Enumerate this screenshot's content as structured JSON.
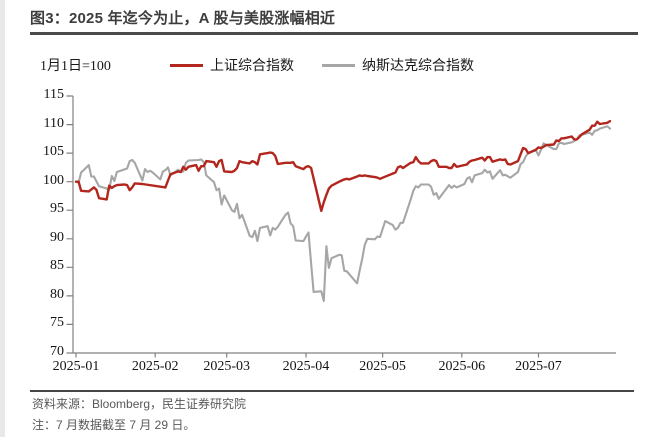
{
  "page": {
    "title": "图3：2025 年迄今为止，A 股与美股涨幅相近",
    "footer": {
      "source": "资料来源：Bloomberg，民生证券研究院",
      "note": "注：7 月数据截至 7 月 29 日。"
    }
  },
  "chart_data": {
    "type": "line",
    "baseline_label": "1月1日=100",
    "ylabel": "",
    "xlabel": "",
    "ylim": [
      70,
      115
    ],
    "y_ticks": [
      70,
      75,
      80,
      85,
      90,
      95,
      100,
      105,
      110,
      115
    ],
    "x_tick_labels": [
      "2025-01",
      "2025-02",
      "2025-03",
      "2025-04",
      "2025-05",
      "2025-06",
      "2025-07"
    ],
    "x_tick_days": [
      1,
      32,
      60,
      91,
      121,
      152,
      182
    ],
    "x_range_days": [
      1,
      213
    ],
    "grid": false,
    "legend_position": "top",
    "axis_color": "#808080",
    "series": [
      {
        "name": "上证综合指数",
        "color": "#b2261d",
        "points": [
          [
            1,
            100
          ],
          [
            2,
            100
          ],
          [
            3,
            98.4
          ],
          [
            6,
            98.3
          ],
          [
            8,
            99
          ],
          [
            9,
            98.6
          ],
          [
            10,
            97.1
          ],
          [
            13,
            96.9
          ],
          [
            14,
            99.3
          ],
          [
            15,
            98.9
          ],
          [
            16,
            99.2
          ],
          [
            17,
            99.4
          ],
          [
            20,
            99.5
          ],
          [
            21,
            99.4
          ],
          [
            22,
            98.5
          ],
          [
            23,
            99
          ],
          [
            24,
            99.7
          ],
          [
            27,
            99.6
          ],
          [
            36,
            99
          ],
          [
            37,
            100.2
          ],
          [
            38,
            101.3
          ],
          [
            41,
            101.8
          ],
          [
            42,
            101.7
          ],
          [
            43,
            102.6
          ],
          [
            44,
            102.1
          ],
          [
            45,
            102.6
          ],
          [
            48,
            102.9
          ],
          [
            49,
            101.9
          ],
          [
            50,
            102.7
          ],
          [
            51,
            102.7
          ],
          [
            52,
            103.6
          ],
          [
            55,
            103.4
          ],
          [
            56,
            102.6
          ],
          [
            57,
            103.6
          ],
          [
            58,
            103.8
          ],
          [
            59,
            101.8
          ],
          [
            62,
            101.7
          ],
          [
            63,
            101.9
          ],
          [
            64,
            102.4
          ],
          [
            65,
            103.6
          ],
          [
            66,
            103.4
          ],
          [
            69,
            103.2
          ],
          [
            70,
            103.6
          ],
          [
            71,
            103.4
          ],
          [
            72,
            103
          ],
          [
            73,
            104.8
          ],
          [
            76,
            105
          ],
          [
            77,
            105.1
          ],
          [
            78,
            105
          ],
          [
            79,
            104.5
          ],
          [
            80,
            103.1
          ],
          [
            83,
            103.3
          ],
          [
            84,
            103.3
          ],
          [
            85,
            103.3
          ],
          [
            86,
            103.4
          ],
          [
            87,
            102.7
          ],
          [
            90,
            102.2
          ],
          [
            91,
            102.6
          ],
          [
            92,
            102.7
          ],
          [
            93,
            102.4
          ],
          [
            97,
            94.9
          ],
          [
            98,
            96.4
          ],
          [
            99,
            97.7
          ],
          [
            100,
            98.8
          ],
          [
            101,
            99.3
          ],
          [
            104,
            100
          ],
          [
            105,
            100.2
          ],
          [
            106,
            100.4
          ],
          [
            107,
            100.5
          ],
          [
            108,
            100.4
          ],
          [
            111,
            100.9
          ],
          [
            112,
            101.1
          ],
          [
            113,
            101
          ],
          [
            114,
            101.1
          ],
          [
            115,
            101
          ],
          [
            118,
            100.8
          ],
          [
            119,
            100.7
          ],
          [
            120,
            100.5
          ],
          [
            126,
            101.6
          ],
          [
            127,
            102.5
          ],
          [
            128,
            102.7
          ],
          [
            129,
            102.4
          ],
          [
            132,
            103.3
          ],
          [
            133,
            103.4
          ],
          [
            134,
            104.3
          ],
          [
            135,
            103.6
          ],
          [
            136,
            103.2
          ],
          [
            139,
            103.2
          ],
          [
            140,
            103.6
          ],
          [
            141,
            103.8
          ],
          [
            142,
            103.6
          ],
          [
            143,
            102.6
          ],
          [
            146,
            102.6
          ],
          [
            147,
            102.4
          ],
          [
            148,
            102.4
          ],
          [
            149,
            103.1
          ],
          [
            150,
            102.6
          ],
          [
            154,
            103
          ],
          [
            155,
            103.5
          ],
          [
            156,
            103.7
          ],
          [
            157,
            103.8
          ],
          [
            160,
            104.2
          ],
          [
            161,
            103.7
          ],
          [
            162,
            104.3
          ],
          [
            163,
            104.3
          ],
          [
            164,
            103.5
          ],
          [
            167,
            103.9
          ],
          [
            168,
            103.8
          ],
          [
            169,
            103.9
          ],
          [
            170,
            103.1
          ],
          [
            171,
            103
          ],
          [
            174,
            103.6
          ],
          [
            175,
            104.8
          ],
          [
            176,
            105.9
          ],
          [
            177,
            105.7
          ],
          [
            178,
            105
          ],
          [
            181,
            105.6
          ],
          [
            182,
            106
          ],
          [
            183,
            105.9
          ],
          [
            184,
            106.1
          ],
          [
            185,
            106.4
          ],
          [
            188,
            106.5
          ],
          [
            189,
            107.2
          ],
          [
            190,
            107.1
          ],
          [
            191,
            107.6
          ],
          [
            192,
            107.6
          ],
          [
            195,
            107.9
          ],
          [
            196,
            107.4
          ],
          [
            197,
            107.4
          ],
          [
            198,
            107.8
          ],
          [
            199,
            108.3
          ],
          [
            202,
            109.1
          ],
          [
            203,
            109.8
          ],
          [
            204,
            109.8
          ],
          [
            205,
            110.5
          ],
          [
            206,
            110.1
          ],
          [
            209,
            110.3
          ],
          [
            210,
            110.6
          ]
        ]
      },
      {
        "name": "纳斯达克综合指数",
        "color": "#a6a6a6",
        "points": [
          [
            1,
            100
          ],
          [
            2,
            99.8
          ],
          [
            3,
            101.6
          ],
          [
            6,
            102.9
          ],
          [
            7,
            100.9
          ],
          [
            8,
            100.9
          ],
          [
            10,
            99.2
          ],
          [
            13,
            98.8
          ],
          [
            14,
            98.6
          ],
          [
            15,
            101
          ],
          [
            16,
            100.1
          ],
          [
            17,
            101.7
          ],
          [
            21,
            102.3
          ],
          [
            22,
            103.6
          ],
          [
            23,
            103.8
          ],
          [
            24,
            103.3
          ],
          [
            27,
            100.2
          ],
          [
            28,
            102.2
          ],
          [
            29,
            101.7
          ],
          [
            30,
            101.9
          ],
          [
            31,
            101.6
          ],
          [
            34,
            100.4
          ],
          [
            35,
            101.8
          ],
          [
            36,
            102
          ],
          [
            37,
            102.5
          ],
          [
            38,
            101.1
          ],
          [
            41,
            102.1
          ],
          [
            42,
            101.7
          ],
          [
            43,
            101.8
          ],
          [
            44,
            103.3
          ],
          [
            45,
            103.7
          ],
          [
            49,
            103.8
          ],
          [
            50,
            103.9
          ],
          [
            51,
            103.4
          ],
          [
            52,
            101.1
          ],
          [
            55,
            99.9
          ],
          [
            56,
            98.5
          ],
          [
            57,
            98.8
          ],
          [
            58,
            96
          ],
          [
            59,
            97.6
          ],
          [
            62,
            95
          ],
          [
            63,
            94.7
          ],
          [
            64,
            96.1
          ],
          [
            65,
            93.6
          ],
          [
            66,
            94.2
          ],
          [
            69,
            90.5
          ],
          [
            70,
            90.3
          ],
          [
            71,
            91.4
          ],
          [
            72,
            89.6
          ],
          [
            73,
            91.9
          ],
          [
            76,
            92.2
          ],
          [
            77,
            90.6
          ],
          [
            78,
            91.9
          ],
          [
            79,
            91.6
          ],
          [
            80,
            92.1
          ],
          [
            83,
            94.2
          ],
          [
            84,
            94.6
          ],
          [
            85,
            92.7
          ],
          [
            86,
            92.2
          ],
          [
            87,
            89.7
          ],
          [
            90,
            89.6
          ],
          [
            91,
            90.4
          ],
          [
            92,
            91.1
          ],
          [
            93,
            85.7
          ],
          [
            94,
            80.7
          ],
          [
            97,
            80.8
          ],
          [
            98,
            79.1
          ],
          [
            99,
            88.7
          ],
          [
            100,
            84.9
          ],
          [
            101,
            86.6
          ],
          [
            104,
            87.2
          ],
          [
            105,
            87.1
          ],
          [
            106,
            84.4
          ],
          [
            107,
            84.3
          ],
          [
            111,
            82.2
          ],
          [
            112,
            84.4
          ],
          [
            113,
            86.5
          ],
          [
            114,
            88.9
          ],
          [
            115,
            90
          ],
          [
            118,
            89.9
          ],
          [
            119,
            90.4
          ],
          [
            120,
            90.3
          ],
          [
            121,
            91.7
          ],
          [
            122,
            93.1
          ],
          [
            125,
            92.4
          ],
          [
            126,
            91.6
          ],
          [
            127,
            91.9
          ],
          [
            128,
            92.8
          ],
          [
            129,
            92.8
          ],
          [
            132,
            96.9
          ],
          [
            133,
            98.4
          ],
          [
            134,
            99.2
          ],
          [
            135,
            99
          ],
          [
            136,
            99.5
          ],
          [
            139,
            99.5
          ],
          [
            140,
            99.1
          ],
          [
            141,
            97.7
          ],
          [
            142,
            98
          ],
          [
            143,
            97
          ],
          [
            147,
            99.4
          ],
          [
            148,
            98.9
          ],
          [
            149,
            99.3
          ],
          [
            150,
            99
          ],
          [
            153,
            99.6
          ],
          [
            154,
            100.5
          ],
          [
            155,
            100.8
          ],
          [
            156,
            99.9
          ],
          [
            157,
            101.1
          ],
          [
            160,
            101.5
          ],
          [
            161,
            102.1
          ],
          [
            162,
            101.6
          ],
          [
            163,
            101.8
          ],
          [
            164,
            100.5
          ],
          [
            167,
            102
          ],
          [
            168,
            101.1
          ],
          [
            169,
            101.2
          ],
          [
            171,
            100.7
          ],
          [
            174,
            101.7
          ],
          [
            175,
            103.1
          ],
          [
            176,
            103.4
          ],
          [
            177,
            104.4
          ],
          [
            178,
            105
          ],
          [
            181,
            105.5
          ],
          [
            182,
            104.6
          ],
          [
            183,
            105.6
          ],
          [
            184,
            106.7
          ],
          [
            188,
            105.7
          ],
          [
            189,
            105.7
          ],
          [
            190,
            106.7
          ],
          [
            191,
            106.8
          ],
          [
            192,
            106.6
          ],
          [
            195,
            106.9
          ],
          [
            196,
            107.1
          ],
          [
            197,
            107.4
          ],
          [
            198,
            108.1
          ],
          [
            199,
            108.2
          ],
          [
            202,
            108.6
          ],
          [
            203,
            108.2
          ],
          [
            204,
            108.9
          ],
          [
            205,
            109
          ],
          [
            206,
            109.3
          ],
          [
            209,
            109.7
          ],
          [
            210,
            109.3
          ]
        ]
      }
    ]
  }
}
